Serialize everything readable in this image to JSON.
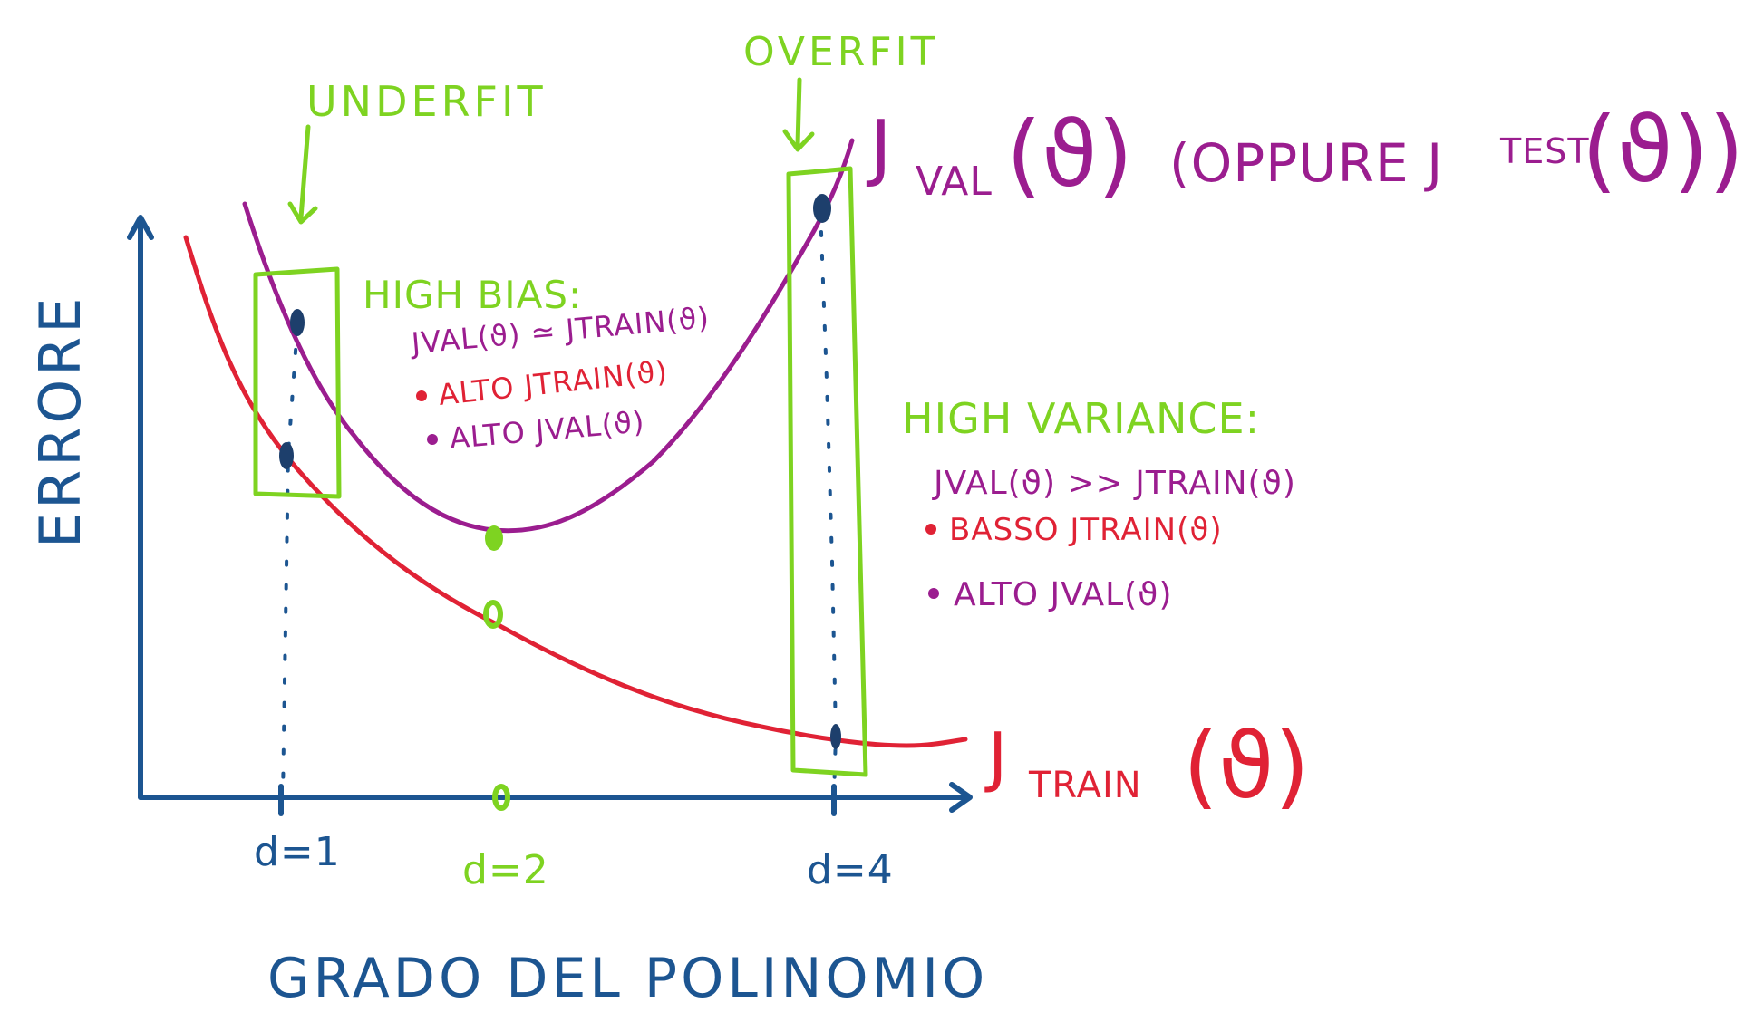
{
  "colors": {
    "blue": "#1c5591",
    "red": "#e02235",
    "purple": "#9b1d8f",
    "green": "#7ed321",
    "dark_marker": "#1d3f6c"
  },
  "axes": {
    "ylabel": "ERRORE",
    "xlabel": "GRADO DEL POLINOMIO",
    "ticks": [
      {
        "label": "d=1",
        "color": "blue"
      },
      {
        "label": "d=2",
        "color": "green"
      },
      {
        "label": "d=4",
        "color": "blue"
      }
    ]
  },
  "curves": {
    "train_label_main": "J",
    "train_label_sub": "TRAIN",
    "train_label_arg": "(ϑ)",
    "val_label_main": "J",
    "val_label_sub": "VAL",
    "val_label_arg": "(ϑ)",
    "val_label_alt": "(OPPURE J",
    "val_label_alt_sub": "TEST",
    "val_label_alt_arg": "(ϑ))"
  },
  "annotations": {
    "underfit": "UNDERFIT",
    "overfit": "OVERFIT",
    "high_bias": {
      "title": "HIGH BIAS:",
      "relation": "JVAL(ϑ) ≃ JTRAIN(ϑ)",
      "item1": "ALTO JTRAIN(ϑ)",
      "item2": "ALTO JVAL(ϑ)"
    },
    "high_variance": {
      "title": "HIGH VARIANCE:",
      "relation": "JVAL(ϑ) >> JTRAIN(ϑ)",
      "item1": "BASSO JTRAIN(ϑ)",
      "item2": "ALTO JVAL(ϑ)"
    }
  }
}
